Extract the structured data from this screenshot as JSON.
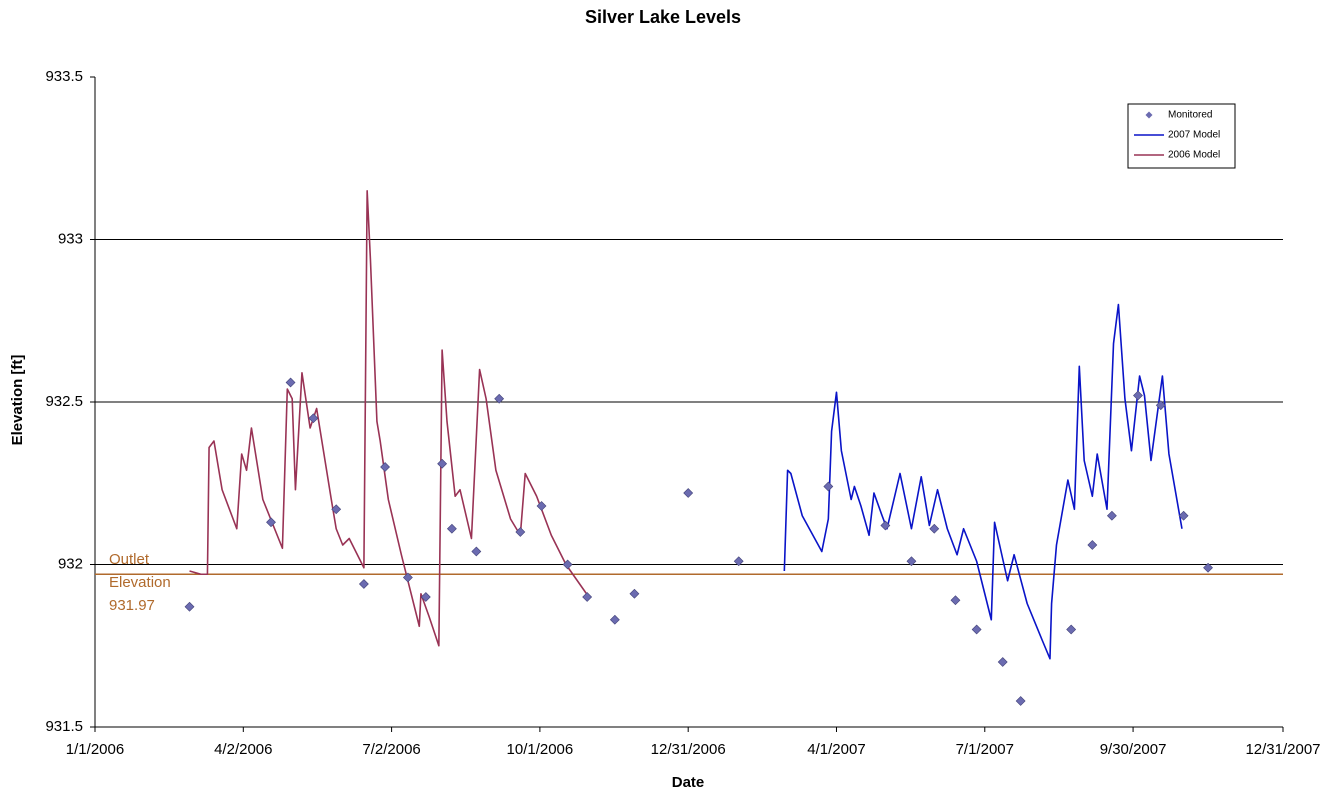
{
  "chart_data": {
    "type": "line",
    "title": "Silver Lake Levels",
    "x_label": "Date",
    "y_label": "Elevation [ft]",
    "xlim": [
      "1/1/2006",
      "12/31/2007"
    ],
    "xticks": [
      "1/1/2006",
      "4/2/2006",
      "7/2/2006",
      "10/1/2006",
      "12/31/2006",
      "4/1/2007",
      "7/1/2007",
      "9/30/2007",
      "12/31/2007"
    ],
    "ylim": [
      931.5,
      933.5
    ],
    "yticks": [
      931.5,
      932,
      932.5,
      933,
      933.5
    ],
    "grid": true,
    "legend": "top-right",
    "outlet": {
      "label": [
        "Outlet",
        "Elevation"
      ],
      "value": 931.97,
      "color": "#b06a2c"
    },
    "series": [
      {
        "name": "Monitored",
        "style": "marker",
        "color": "#6b6bb0",
        "x": [
          "2/28/2006",
          "4/19/2006",
          "5/1/2006",
          "5/15/2006",
          "5/29/2006",
          "6/15/2006",
          "6/28/2006",
          "7/12/2006",
          "7/23/2006",
          "8/2/2006",
          "8/8/2006",
          "8/23/2006",
          "9/6/2006",
          "9/19/2006",
          "10/2/2006",
          "10/18/2006",
          "10/30/2006",
          "11/16/2006",
          "11/28/2006",
          "12/31/2006",
          "1/31/2007",
          "3/27/2007",
          "5/1/2007",
          "5/17/2007",
          "5/31/2007",
          "6/13/2007",
          "6/26/2007",
          "7/12/2007",
          "7/23/2007",
          "8/23/2007",
          "9/5/2007",
          "9/17/2007",
          "10/3/2007",
          "10/17/2007",
          "10/31/2007",
          "11/15/2007"
        ],
        "values": [
          931.87,
          932.13,
          932.56,
          932.45,
          932.17,
          931.94,
          932.3,
          931.96,
          931.9,
          932.31,
          932.11,
          932.04,
          932.51,
          932.1,
          932.18,
          932.0,
          931.9,
          931.83,
          931.91,
          932.22,
          932.01,
          932.24,
          932.12,
          932.01,
          932.11,
          931.89,
          931.8,
          931.7,
          931.58,
          931.8,
          932.06,
          932.15,
          932.52,
          932.49,
          932.15,
          931.99
        ]
      },
      {
        "name": "2007 Model",
        "style": "line",
        "color": "#0a14c8",
        "x": [
          "2/28/2007",
          "3/2/2007",
          "3/4/2007",
          "3/11/2007",
          "3/23/2007",
          "3/27/2007",
          "3/29/2007",
          "4/1/2007",
          "4/4/2007",
          "4/10/2007",
          "4/12/2007",
          "4/16/2007",
          "4/21/2007",
          "4/24/2007",
          "4/29/2007",
          "5/2/2007",
          "5/10/2007",
          "5/17/2007",
          "5/23/2007",
          "5/28/2007",
          "6/2/2007",
          "6/8/2007",
          "6/14/2007",
          "6/18/2007",
          "6/26/2007",
          "7/5/2007",
          "7/7/2007",
          "7/15/2007",
          "7/19/2007",
          "7/27/2007",
          "8/5/2007",
          "8/10/2007",
          "8/11/2007",
          "8/14/2007",
          "8/21/2007",
          "8/25/2007",
          "8/28/2007",
          "8/31/2007",
          "9/5/2007",
          "9/8/2007",
          "9/14/2007",
          "9/18/2007",
          "9/21/2007",
          "9/25/2007",
          "9/29/2007",
          "10/4/2007",
          "10/7/2007",
          "10/11/2007",
          "10/18/2007",
          "10/22/2007",
          "10/30/2007"
        ],
        "values": [
          931.98,
          932.29,
          932.28,
          932.15,
          932.04,
          932.14,
          932.41,
          932.53,
          932.35,
          932.2,
          932.24,
          932.18,
          932.09,
          932.22,
          932.15,
          932.11,
          932.28,
          932.11,
          932.27,
          932.12,
          932.23,
          932.11,
          932.03,
          932.11,
          932.01,
          931.83,
          932.13,
          931.95,
          932.03,
          931.88,
          931.77,
          931.71,
          931.88,
          932.06,
          932.26,
          932.17,
          932.61,
          932.32,
          932.21,
          932.34,
          932.17,
          932.68,
          932.8,
          932.51,
          932.35,
          932.58,
          932.52,
          932.32,
          932.58,
          932.34,
          932.11
        ]
      },
      {
        "name": "2006 Model",
        "style": "line",
        "color": "#993355",
        "x": [
          "2/28/2006",
          "3/7/2006",
          "3/11/2006",
          "3/12/2006",
          "3/15/2006",
          "3/20/2006",
          "3/29/2006",
          "4/1/2006",
          "4/4/2006",
          "4/7/2006",
          "4/14/2006",
          "4/26/2006",
          "4/29/2006",
          "5/2/2006",
          "5/4/2006",
          "5/8/2006",
          "5/13/2006",
          "5/17/2006",
          "5/26/2006",
          "5/29/2006",
          "6/2/2006",
          "6/6/2006",
          "6/15/2006",
          "6/17/2006",
          "6/19/2006",
          "6/23/2006",
          "6/25/2006",
          "6/30/2006",
          "7/8/2006",
          "7/19/2006",
          "7/20/2006",
          "7/25/2006",
          "7/31/2006",
          "8/2/2006",
          "8/5/2006",
          "8/10/2006",
          "8/13/2006",
          "8/20/2006",
          "8/25/2006",
          "8/29/2006",
          "9/4/2006",
          "9/13/2006",
          "9/19/2006",
          "9/22/2006",
          "9/29/2006",
          "10/8/2006",
          "10/17/2006",
          "10/31/2006"
        ],
        "values": [
          931.98,
          931.97,
          931.97,
          932.36,
          932.38,
          932.23,
          932.11,
          932.34,
          932.29,
          932.42,
          932.2,
          932.05,
          932.54,
          932.51,
          932.23,
          932.59,
          932.42,
          932.48,
          932.2,
          932.11,
          932.06,
          932.08,
          931.99,
          933.15,
          932.94,
          932.44,
          932.38,
          932.2,
          932.03,
          931.81,
          931.91,
          931.84,
          931.75,
          932.66,
          932.44,
          932.21,
          932.23,
          932.08,
          932.6,
          932.51,
          932.29,
          932.14,
          932.09,
          932.28,
          932.21,
          932.09,
          932.0,
          931.9
        ]
      }
    ]
  }
}
